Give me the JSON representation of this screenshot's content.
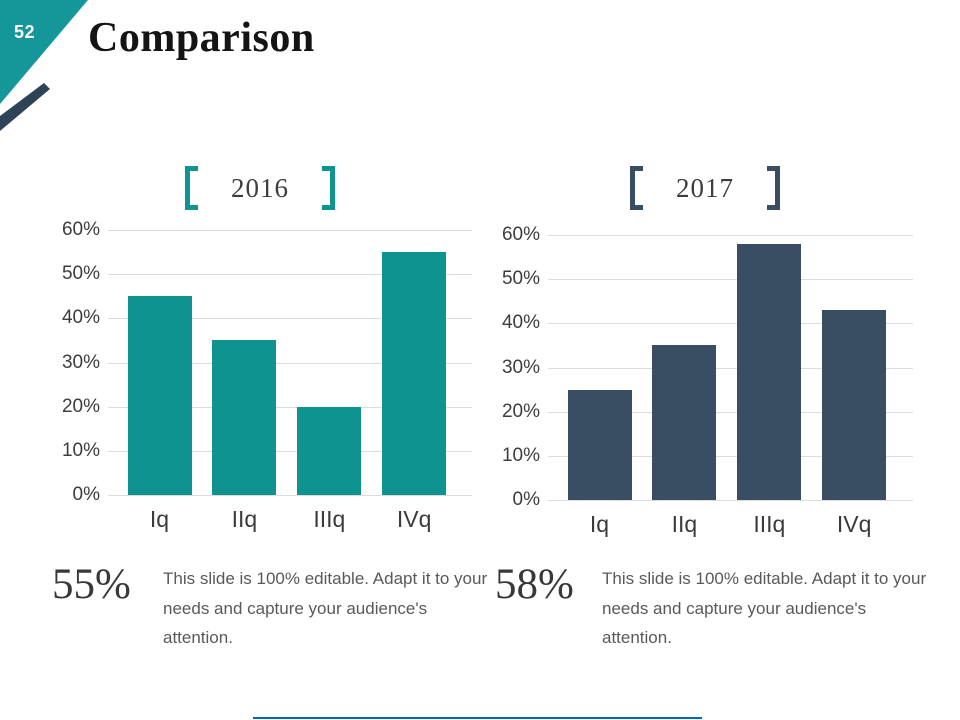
{
  "slide": {
    "number": "52",
    "title": "Comparison"
  },
  "theme": {
    "corner_teal": "#14969a",
    "corner_navy": "#2f4358",
    "teal_accent": "#0f9390",
    "navy_accent": "#3a4e63",
    "grid_color": "#dcdcdc",
    "bottom_line_color": "#0563c1"
  },
  "chart_data": [
    {
      "type": "bar",
      "title": "2016",
      "categories": [
        "Iq",
        "IIq",
        "IIIq",
        "IVq"
      ],
      "values": [
        45,
        35,
        20,
        55
      ],
      "xlabel": "",
      "ylabel": "",
      "ylim": [
        0,
        60
      ],
      "ytick_step": 10,
      "ytick_suffix": "%",
      "bar_color": "#0f9390",
      "grid": true,
      "legend": "none"
    },
    {
      "type": "bar",
      "title": "2017",
      "categories": [
        "Iq",
        "IIq",
        "IIIq",
        "IVq"
      ],
      "values": [
        25,
        35,
        58,
        43
      ],
      "xlabel": "",
      "ylabel": "",
      "ylim": [
        0,
        60
      ],
      "ytick_step": 10,
      "ytick_suffix": "%",
      "bar_color": "#3a4e63",
      "grid": true,
      "legend": "none"
    }
  ],
  "stats": [
    {
      "value": "55%",
      "desc_lines": [
        "This slide is 100% editable. Adapt it to your",
        "needs and capture your audience's",
        "attention."
      ]
    },
    {
      "value": "58%",
      "desc_lines": [
        "This slide is 100% editable. Adapt it to your",
        "needs and capture your audience's",
        "attention."
      ]
    }
  ]
}
